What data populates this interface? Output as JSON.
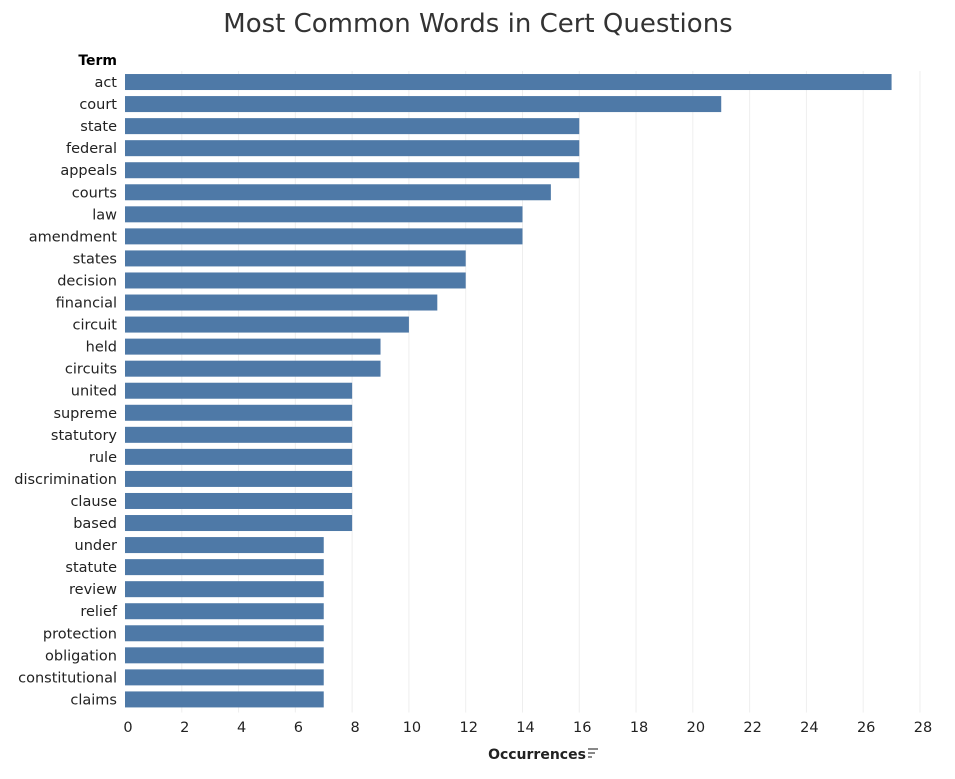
{
  "chart_data": {
    "type": "bar",
    "orientation": "horizontal",
    "title": "Most Common Words in Cert Questions",
    "row_header": "Term",
    "xlabel": "Occurrences",
    "xlim": [
      0,
      28
    ],
    "x_ticks": [
      0,
      2,
      4,
      6,
      8,
      10,
      12,
      14,
      16,
      18,
      20,
      22,
      24,
      26,
      28
    ],
    "grid": true,
    "bar_color": "#4e79a7",
    "sort_icon": "sort-descending-icon",
    "categories": [
      "act",
      "court",
      "state",
      "federal",
      "appeals",
      "courts",
      "law",
      "amendment",
      "states",
      "decision",
      "financial",
      "circuit",
      "held",
      "circuits",
      "united",
      "supreme",
      "statutory",
      "rule",
      "discrimination",
      "clause",
      "based",
      "under",
      "statute",
      "review",
      "relief",
      "protection",
      "obligation",
      "constitutional",
      "claims"
    ],
    "values": [
      27,
      21,
      16,
      16,
      16,
      15,
      14,
      14,
      12,
      12,
      11,
      10,
      9,
      9,
      8,
      8,
      8,
      8,
      8,
      8,
      8,
      7,
      7,
      7,
      7,
      7,
      7,
      7,
      7
    ]
  }
}
